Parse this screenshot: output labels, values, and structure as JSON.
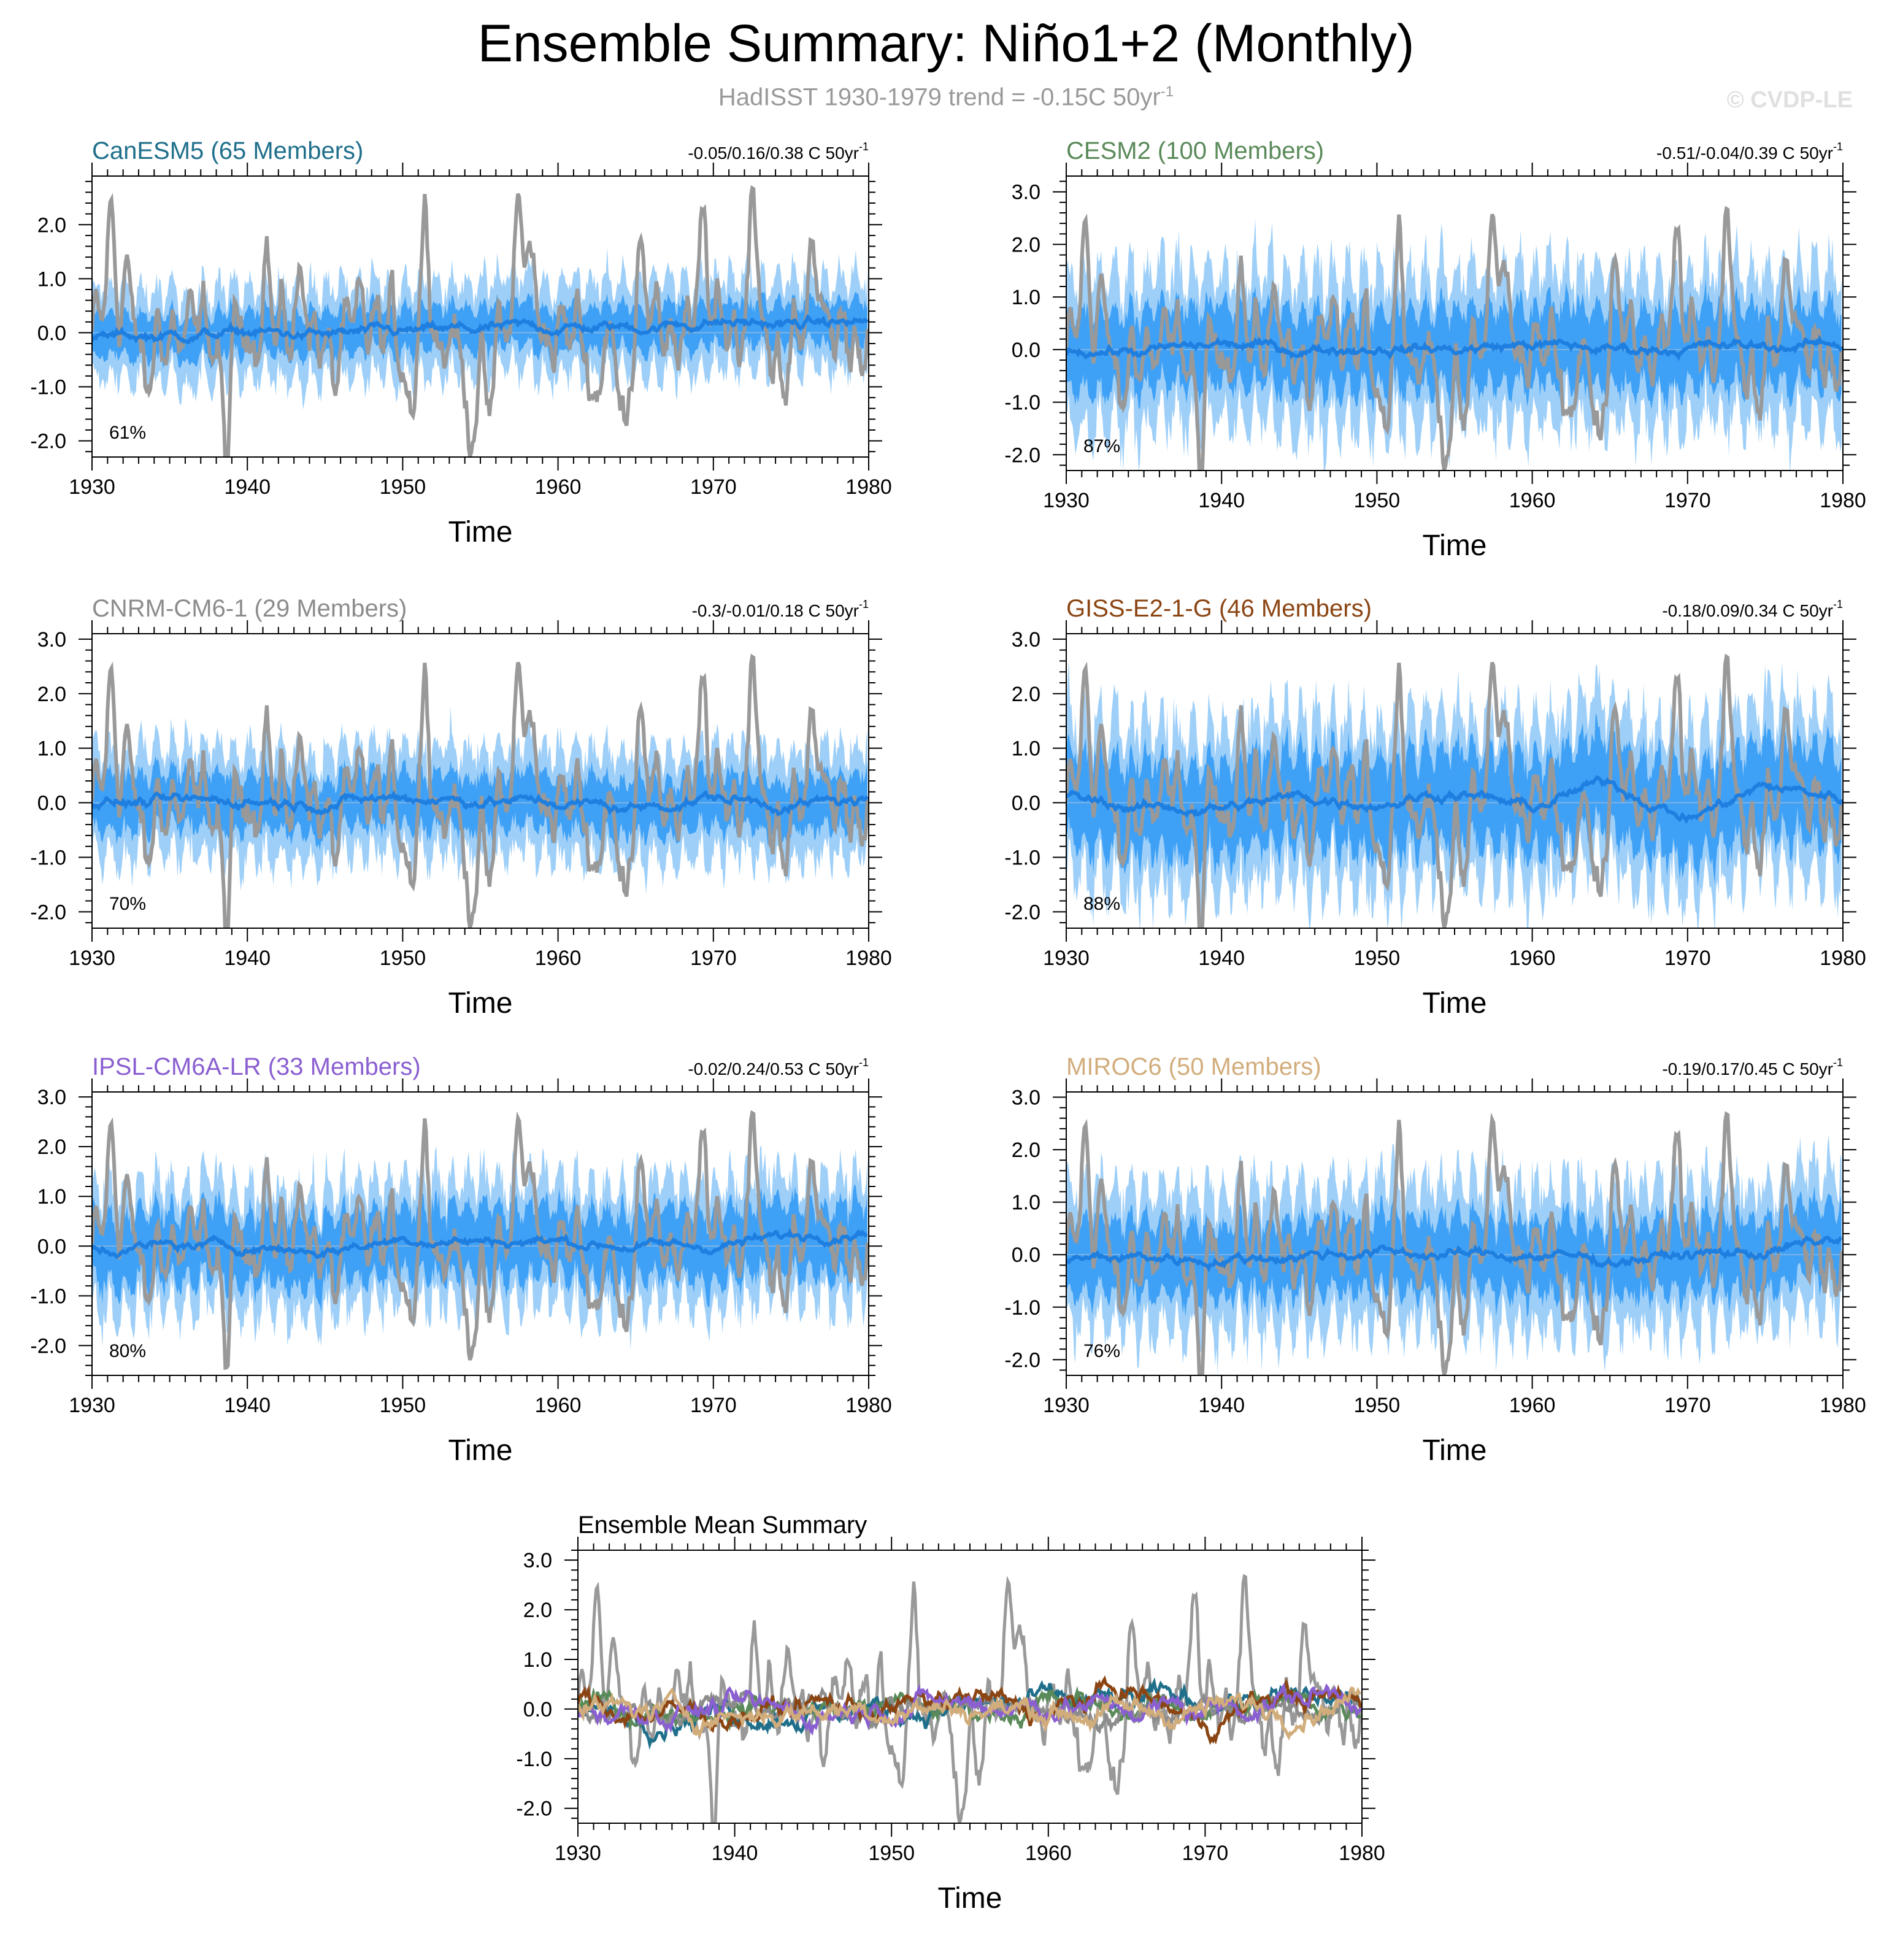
{
  "page": {
    "title": "Ensemble Summary: Niño1+2 (Monthly)",
    "subtitle": "HadISST 1930-1979 trend = -0.15C 50yr",
    "subtitle_sup": "-1",
    "watermark": "© CVDP-LE"
  },
  "colors": {
    "obs": "#999999",
    "outer_band": "#9ecff8",
    "inner_band": "#3fa1f6",
    "mean_line": "#1e7fe0",
    "canesm5": "#1f6f8b",
    "cesm2": "#5a8a5a",
    "cnrm": "#8c8c8c",
    "giss": "#8b4513",
    "ipsl": "#8a5fd1",
    "miroc6": "#d2ad7c"
  },
  "chart_data": [
    {
      "type": "line",
      "id": "canesm5",
      "title": "CanESM5 (65 Members)",
      "title_color": "#1f6f8b",
      "trend_text": "-0.05/0.16/0.38 C 50yr",
      "trend_sup": "-1",
      "percent": "61%",
      "xlabel": "Time",
      "xlim": [
        1930,
        1980
      ],
      "ylim": [
        -2.3,
        2.9
      ],
      "xticks": [
        "1930",
        "1940",
        "1950",
        "1960",
        "1970",
        "1980"
      ],
      "yticks": [
        "2.0",
        "1.0",
        "0.0",
        "-1.0",
        "-2.0"
      ],
      "ytick_values": [
        2,
        1,
        0,
        -1,
        -2
      ],
      "series": [
        {
          "name": "HadISST",
          "style": "observations"
        },
        {
          "name": "Ensemble 10-90% range",
          "style": "outer_band",
          "spread": 0.85
        },
        {
          "name": "Ensemble 25-75% range",
          "style": "inner_band",
          "spread": 0.4
        },
        {
          "name": "Ensemble mean",
          "style": "mean",
          "values": [
            -0.1,
            -0.05,
            0.0,
            -0.05,
            0.0,
            0.05,
            0.1,
            0.1,
            0.2,
            0.15,
            0.2
          ]
        }
      ]
    },
    {
      "type": "line",
      "id": "cesm2",
      "title": "CESM2 (100 Members)",
      "title_color": "#5a8a5a",
      "trend_text": "-0.51/-0.04/0.39 C 50yr",
      "trend_sup": "-1",
      "percent": "87%",
      "xlabel": "Time",
      "xlim": [
        1930,
        1980
      ],
      "ylim": [
        -2.3,
        3.3
      ],
      "xticks": [
        "1930",
        "1940",
        "1950",
        "1960",
        "1970",
        "1980"
      ],
      "yticks": [
        "3.0",
        "2.0",
        "1.0",
        "0.0",
        "-1.0",
        "-2.0"
      ],
      "ytick_values": [
        3,
        2,
        1,
        0,
        -1,
        -2
      ],
      "series": [
        {
          "name": "HadISST",
          "style": "observations"
        },
        {
          "name": "Ensemble 10-90% range",
          "style": "outer_band",
          "spread": 1.45
        },
        {
          "name": "Ensemble 25-75% range",
          "style": "inner_band",
          "spread": 0.75
        },
        {
          "name": "Ensemble mean",
          "style": "mean",
          "values": [
            0.05,
            -0.05,
            0.1,
            0.0,
            0.05,
            0.0,
            0.1,
            0.0,
            0.05,
            0.05,
            0.1
          ]
        }
      ]
    },
    {
      "type": "line",
      "id": "cnrm",
      "title": "CNRM-CM6-1 (29 Members)",
      "title_color": "#8c8c8c",
      "trend_text": "-0.3/-0.01/0.18 C 50yr",
      "trend_sup": "-1",
      "percent": "70%",
      "xlabel": "Time",
      "xlim": [
        1930,
        1980
      ],
      "ylim": [
        -2.3,
        3.1
      ],
      "xticks": [
        "1930",
        "1940",
        "1950",
        "1960",
        "1970",
        "1980"
      ],
      "yticks": [
        "3.0",
        "2.0",
        "1.0",
        "0.0",
        "-1.0",
        "-2.0"
      ],
      "ytick_values": [
        3,
        2,
        1,
        0,
        -1,
        -2
      ],
      "series": [
        {
          "name": "HadISST",
          "style": "observations"
        },
        {
          "name": "Ensemble 10-90% range",
          "style": "outer_band",
          "spread": 1.0
        },
        {
          "name": "Ensemble 25-75% range",
          "style": "inner_band",
          "spread": 0.5
        },
        {
          "name": "Ensemble mean",
          "style": "mean",
          "values": [
            0.0,
            0.0,
            0.05,
            0.0,
            0.1,
            0.05,
            0.0,
            -0.1,
            0.1,
            -0.05,
            0.05
          ]
        }
      ]
    },
    {
      "type": "line",
      "id": "giss",
      "title": "GISS-E2-1-G (46 Members)",
      "title_color": "#8b4513",
      "trend_text": "-0.18/0.09/0.34 C 50yr",
      "trend_sup": "-1",
      "percent": "88%",
      "xlabel": "Time",
      "xlim": [
        1930,
        1980
      ],
      "ylim": [
        -2.3,
        3.1
      ],
      "xticks": [
        "1930",
        "1940",
        "1950",
        "1960",
        "1970",
        "1980"
      ],
      "yticks": [
        "3.0",
        "2.0",
        "1.0",
        "0.0",
        "-1.0",
        "-2.0"
      ],
      "ytick_values": [
        3,
        2,
        1,
        0,
        -1,
        -2
      ],
      "series": [
        {
          "name": "HadISST",
          "style": "observations"
        },
        {
          "name": "Ensemble 10-90% range",
          "style": "outer_band",
          "spread": 1.5
        },
        {
          "name": "Ensemble 25-75% range",
          "style": "inner_band",
          "spread": 0.85
        },
        {
          "name": "Ensemble mean",
          "style": "mean",
          "values": [
            0.1,
            -0.1,
            -0.1,
            0.1,
            0.0,
            0.2,
            -0.1,
            0.4,
            -0.3,
            0.3,
            0.1
          ]
        }
      ]
    },
    {
      "type": "line",
      "id": "ipsl",
      "title": "IPSL-CM6A-LR (33 Members)",
      "title_color": "#8a5fd1",
      "trend_text": "-0.02/0.24/0.53 C 50yr",
      "trend_sup": "-1",
      "percent": "80%",
      "xlabel": "Time",
      "xlim": [
        1930,
        1980
      ],
      "ylim": [
        -2.6,
        3.1
      ],
      "xticks": [
        "1930",
        "1940",
        "1950",
        "1960",
        "1970",
        "1980"
      ],
      "yticks": [
        "3.0",
        "2.0",
        "1.0",
        "0.0",
        "-1.0",
        "-2.0"
      ],
      "ytick_values": [
        3,
        2,
        1,
        0,
        -1,
        -2
      ],
      "series": [
        {
          "name": "HadISST",
          "style": "observations"
        },
        {
          "name": "Ensemble 10-90% range",
          "style": "outer_band",
          "spread": 1.25
        },
        {
          "name": "Ensemble 25-75% range",
          "style": "inner_band",
          "spread": 0.7
        },
        {
          "name": "Ensemble mean",
          "style": "mean",
          "values": [
            -0.05,
            0.0,
            0.0,
            -0.1,
            0.15,
            0.1,
            0.1,
            0.0,
            0.0,
            0.2,
            0.35
          ]
        }
      ]
    },
    {
      "type": "line",
      "id": "miroc6",
      "title": "MIROC6 (50 Members)",
      "title_color": "#d2ad7c",
      "trend_text": "-0.19/0.17/0.45 C 50yr",
      "trend_sup": "-1",
      "percent": "76%",
      "xlabel": "Time",
      "xlim": [
        1930,
        1980
      ],
      "ylim": [
        -2.3,
        3.1
      ],
      "xticks": [
        "1930",
        "1940",
        "1950",
        "1960",
        "1970",
        "1980"
      ],
      "yticks": [
        "3.0",
        "2.0",
        "1.0",
        "0.0",
        "-1.0",
        "-2.0"
      ],
      "ytick_values": [
        3,
        2,
        1,
        0,
        -1,
        -2
      ],
      "series": [
        {
          "name": "HadISST",
          "style": "observations"
        },
        {
          "name": "Ensemble 10-90% range",
          "style": "outer_band",
          "spread": 1.35
        },
        {
          "name": "Ensemble 25-75% range",
          "style": "inner_band",
          "spread": 0.7
        },
        {
          "name": "Ensemble mean",
          "style": "mean",
          "values": [
            -0.1,
            -0.05,
            -0.1,
            0.0,
            0.05,
            0.0,
            0.0,
            -0.1,
            0.0,
            0.05,
            0.3
          ]
        }
      ]
    },
    {
      "type": "line",
      "id": "mean_summary",
      "title": "Ensemble Mean Summary",
      "title_color": "#000000",
      "xlabel": "Time",
      "xlim": [
        1930,
        1980
      ],
      "ylim": [
        -2.3,
        3.2
      ],
      "xticks": [
        "1930",
        "1940",
        "1950",
        "1960",
        "1970",
        "1980"
      ],
      "yticks": [
        "3.0",
        "2.0",
        "1.0",
        "0.0",
        "-1.0",
        "-2.0"
      ],
      "ytick_values": [
        3,
        2,
        1,
        0,
        -1,
        -2
      ],
      "series": [
        {
          "name": "HadISST",
          "color": "#999999"
        },
        {
          "name": "CanESM5",
          "color": "#1f6f8b"
        },
        {
          "name": "CESM2",
          "color": "#5a8a5a"
        },
        {
          "name": "CNRM-CM6-1",
          "color": "#8c8c8c"
        },
        {
          "name": "GISS-E2-1-G",
          "color": "#8b4513"
        },
        {
          "name": "IPSL-CM6A-LR",
          "color": "#8a5fd1"
        },
        {
          "name": "MIROC6",
          "color": "#d2ad7c"
        }
      ]
    }
  ]
}
